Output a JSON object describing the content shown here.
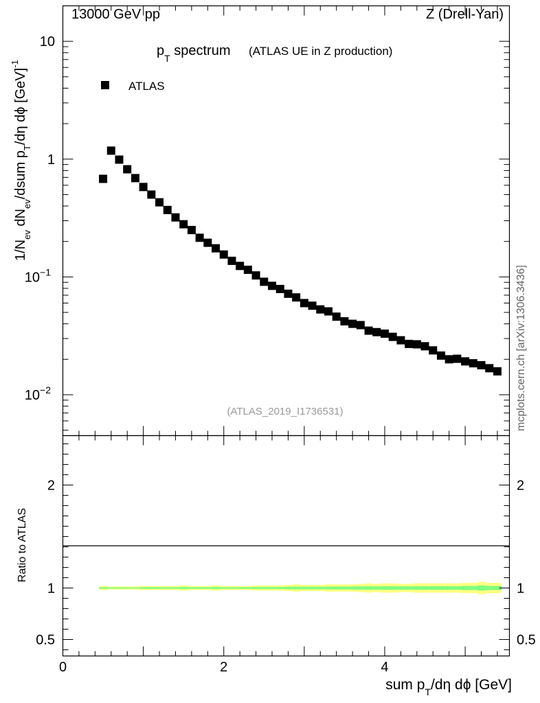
{
  "header": {
    "energy_label": "13000 GeV pp",
    "process_label": "Z (Drell-Yan)"
  },
  "side_label": "mcplots.cern.ch [arXiv:1306.3436]",
  "chart_data": {
    "type": "scatter",
    "title_main": "p",
    "title_sub": "T",
    "title_rest": " spectrum",
    "subtitle": "(ATLAS UE in Z production)",
    "watermark": "(ATLAS_2019_I1736531)",
    "legend": [
      {
        "name": "ATLAS",
        "marker": "square",
        "color": "#000000"
      }
    ],
    "legend_position": "top-left",
    "x": [
      0.5,
      0.6,
      0.7,
      0.8,
      0.9,
      1.0,
      1.1,
      1.2,
      1.3,
      1.4,
      1.5,
      1.6,
      1.7,
      1.8,
      1.9,
      2.0,
      2.1,
      2.2,
      2.3,
      2.4,
      2.5,
      2.6,
      2.7,
      2.8,
      2.9,
      3.0,
      3.1,
      3.2,
      3.3,
      3.4,
      3.5,
      3.6,
      3.7,
      3.8,
      3.9,
      4.0,
      4.1,
      4.2,
      4.3,
      4.4,
      4.5,
      4.6,
      4.7,
      4.8,
      4.9,
      5.0,
      5.1,
      5.2,
      5.3,
      5.4
    ],
    "y": [
      0.68,
      1.18,
      0.99,
      0.82,
      0.69,
      0.58,
      0.5,
      0.43,
      0.37,
      0.32,
      0.28,
      0.25,
      0.215,
      0.195,
      0.175,
      0.155,
      0.137,
      0.124,
      0.115,
      0.103,
      0.091,
      0.084,
      0.079,
      0.072,
      0.067,
      0.06,
      0.057,
      0.053,
      0.051,
      0.046,
      0.042,
      0.04,
      0.039,
      0.035,
      0.034,
      0.033,
      0.031,
      0.029,
      0.027,
      0.0268,
      0.0258,
      0.0238,
      0.0215,
      0.02,
      0.0202,
      0.0192,
      0.0185,
      0.0178,
      0.0168,
      0.0158
    ],
    "xlabel": "sum p_T/dη dϕ [GeV]",
    "xlabel_parts": {
      "a": "sum p",
      "sub": "T",
      "b": "/dη dϕ [GeV]"
    },
    "ylabel_parts": {
      "a": "1/N",
      "sub1": "ev",
      "b": " dN",
      "sub2": "ev",
      "c": "/dsum p",
      "sub3": "T",
      "d": "/dη dϕ  [GeV]",
      "sup": "-1"
    },
    "xlim": [
      0,
      5.55
    ],
    "ylim_log": [
      0.0045,
      20
    ],
    "xticks": [
      "0",
      "2",
      "4"
    ],
    "yticks": [
      {
        "value": 10,
        "base": "10",
        "exp": ""
      },
      {
        "value": 1,
        "base": "1",
        "exp": ""
      },
      {
        "value": 0.1,
        "base": "10",
        "exp": "−1"
      },
      {
        "value": 0.01,
        "base": "10",
        "exp": "−2"
      }
    ],
    "ratio": {
      "ylabel": "Ratio to ATLAS",
      "ylim": [
        0.34,
        2.48
      ],
      "yticks": [
        0.5,
        1,
        2
      ],
      "ytick_labels": [
        "0.5",
        "1",
        "2"
      ],
      "band_yellow_halfwidth": [
        0.02,
        0.015,
        0.015,
        0.015,
        0.015,
        0.02,
        0.02,
        0.02,
        0.02,
        0.02,
        0.025,
        0.02,
        0.02,
        0.02,
        0.025,
        0.02,
        0.02,
        0.02,
        0.02,
        0.025,
        0.025,
        0.025,
        0.025,
        0.03,
        0.035,
        0.03,
        0.03,
        0.03,
        0.035,
        0.035,
        0.035,
        0.035,
        0.04,
        0.045,
        0.04,
        0.045,
        0.045,
        0.04,
        0.04,
        0.045,
        0.045,
        0.045,
        0.045,
        0.045,
        0.045,
        0.05,
        0.05,
        0.06,
        0.05,
        0.05
      ],
      "band_green_halfwidth": [
        0.008,
        0.006,
        0.006,
        0.006,
        0.006,
        0.008,
        0.008,
        0.008,
        0.008,
        0.008,
        0.01,
        0.008,
        0.008,
        0.008,
        0.01,
        0.008,
        0.008,
        0.008,
        0.008,
        0.01,
        0.01,
        0.01,
        0.01,
        0.012,
        0.014,
        0.012,
        0.012,
        0.012,
        0.014,
        0.014,
        0.014,
        0.014,
        0.016,
        0.018,
        0.016,
        0.018,
        0.018,
        0.016,
        0.016,
        0.018,
        0.018,
        0.018,
        0.018,
        0.018,
        0.018,
        0.02,
        0.02,
        0.025,
        0.02,
        0.02
      ]
    },
    "colors": {
      "marker": "#000000",
      "band_outer": "#ffff7f",
      "band_inner": "#7fff7f"
    }
  }
}
